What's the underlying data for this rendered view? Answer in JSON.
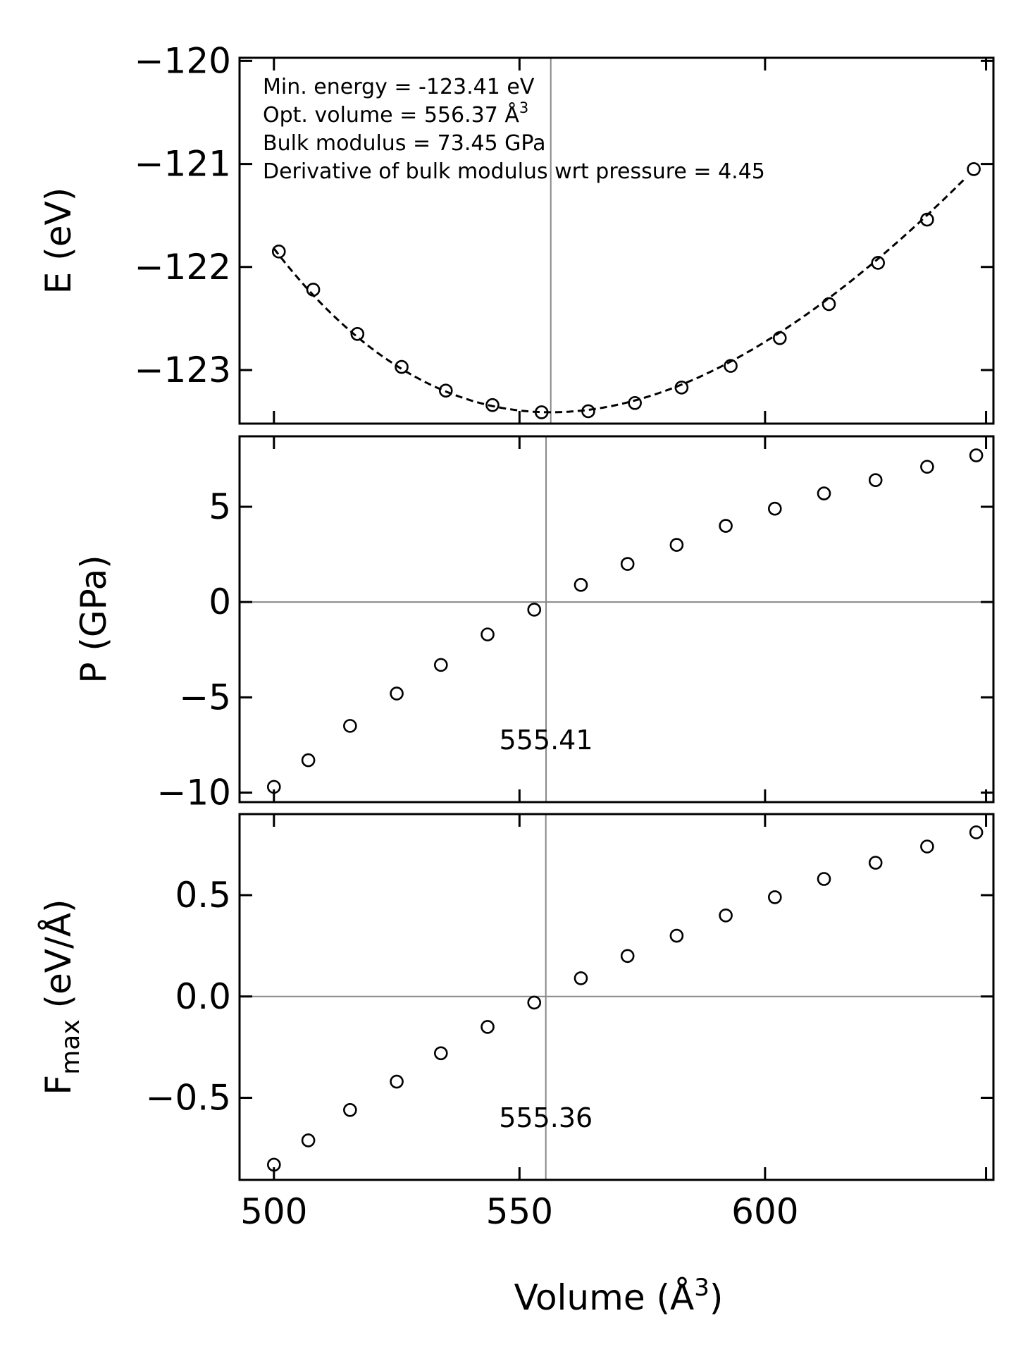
{
  "x_axis": {
    "label": "Volume (Å",
    "label_sup": "3",
    "label_close": ")"
  },
  "chart_data": [
    {
      "type": "scatter",
      "ylabel": "E (eV)",
      "xlim": [
        493,
        646.5
      ],
      "ylim": [
        -123.52,
        -119.97
      ],
      "yticks": [
        -120,
        -121,
        -122,
        -123
      ],
      "ytick_labels": [
        "−120",
        "−121",
        "−122",
        "−123"
      ],
      "xticks": [
        500,
        550,
        600,
        645
      ],
      "vline": 556.37,
      "fit_curve": {
        "min_energy": -123.41,
        "opt_volume": 556.37,
        "bulk_modulus_gpa": 73.45,
        "b_prime": 4.45,
        "x_range": [
          500,
          641
        ]
      },
      "annotations": [
        "Min. energy = -123.41 eV",
        "Opt. volume = 556.37 Å",
        "Bulk modulus = 73.45 GPa",
        "Derivative of bulk modulus wrt pressure = 4.45"
      ],
      "annotation_sup": "3",
      "x": [
        501,
        508,
        517,
        526,
        535,
        544.5,
        554.5,
        564,
        573.5,
        583,
        593,
        603,
        613,
        623,
        633,
        642.5
      ],
      "y": [
        -121.85,
        -122.22,
        -122.65,
        -122.97,
        -123.2,
        -123.34,
        -123.41,
        -123.4,
        -123.32,
        -123.17,
        -122.96,
        -122.69,
        -122.36,
        -121.96,
        -121.54,
        -121.05
      ]
    },
    {
      "type": "scatter",
      "ylabel": "P (GPa)",
      "xlim": [
        493,
        646.5
      ],
      "ylim": [
        -10.5,
        8.7
      ],
      "yticks": [
        5,
        0,
        -5,
        -10
      ],
      "ytick_labels": [
        "5",
        "0",
        "−5",
        "−10"
      ],
      "xticks": [
        500,
        550,
        600,
        645
      ],
      "vline": 555.41,
      "hline": 0,
      "vline_label": "555.41",
      "x": [
        500,
        507,
        515.5,
        525,
        534,
        543.5,
        553,
        562.5,
        572,
        582,
        592,
        602,
        612,
        622.5,
        633,
        643
      ],
      "y": [
        -9.7,
        -8.3,
        -6.5,
        -4.8,
        -3.3,
        -1.7,
        -0.4,
        0.9,
        2.0,
        3.0,
        4.0,
        4.9,
        5.7,
        6.4,
        7.1,
        7.7
      ]
    },
    {
      "type": "scatter",
      "ylabel_main": "F",
      "ylabel_sub": "max",
      "ylabel_rest": " (eV/Å)",
      "xlim": [
        493,
        646.5
      ],
      "ylim": [
        -0.905,
        0.9
      ],
      "yticks": [
        0.5,
        0.0,
        -0.5
      ],
      "ytick_labels": [
        "0.5",
        "0.0",
        "−0.5"
      ],
      "xticks": [
        500,
        550,
        600,
        645
      ],
      "xtick_labels": [
        "500",
        "550",
        "600",
        ""
      ],
      "vline": 555.36,
      "hline": 0,
      "vline_label": "555.36",
      "x": [
        500,
        507,
        515.5,
        525,
        534,
        543.5,
        553,
        562.5,
        572,
        582,
        592,
        602,
        612,
        622.5,
        633,
        643
      ],
      "y": [
        -0.83,
        -0.71,
        -0.56,
        -0.42,
        -0.28,
        -0.15,
        -0.03,
        0.09,
        0.2,
        0.3,
        0.4,
        0.49,
        0.58,
        0.66,
        0.74,
        0.81
      ]
    }
  ]
}
